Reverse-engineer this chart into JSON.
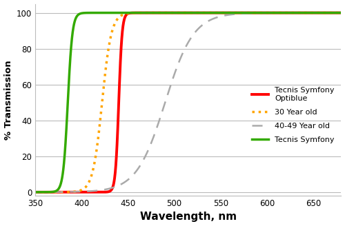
{
  "title": "",
  "xlabel": "Wavelength, nm",
  "ylabel": "% Transmission",
  "xlim": [
    350,
    680
  ],
  "ylim": [
    -2,
    105
  ],
  "xticks": [
    350,
    400,
    450,
    500,
    550,
    600,
    650
  ],
  "yticks": [
    0,
    20,
    40,
    60,
    80,
    100
  ],
  "grid_color": "#bbbbbb",
  "background_color": "#ffffff",
  "curves": {
    "tecnis_optiblue": {
      "label": "Tecnis Symfony\nOptiblue",
      "color": "#ff0000",
      "linestyle": "solid",
      "linewidth": 2.8,
      "x0": 440,
      "k": 0.55
    },
    "age30": {
      "label": "30 Year old",
      "color": "#ffa500",
      "linestyle": "dotted",
      "linewidth": 2.5,
      "x0": 422,
      "k": 0.2
    },
    "age4049": {
      "label": "40-49 Year old",
      "color": "#aaaaaa",
      "linestyle": "dashed",
      "linewidth": 1.8,
      "x0": 490,
      "k": 0.065
    },
    "tecnis_symfony": {
      "label": "Tecnis Symfony",
      "color": "#33aa00",
      "linestyle": "solid",
      "linewidth": 2.5,
      "x0": 385,
      "k": 0.4
    }
  }
}
